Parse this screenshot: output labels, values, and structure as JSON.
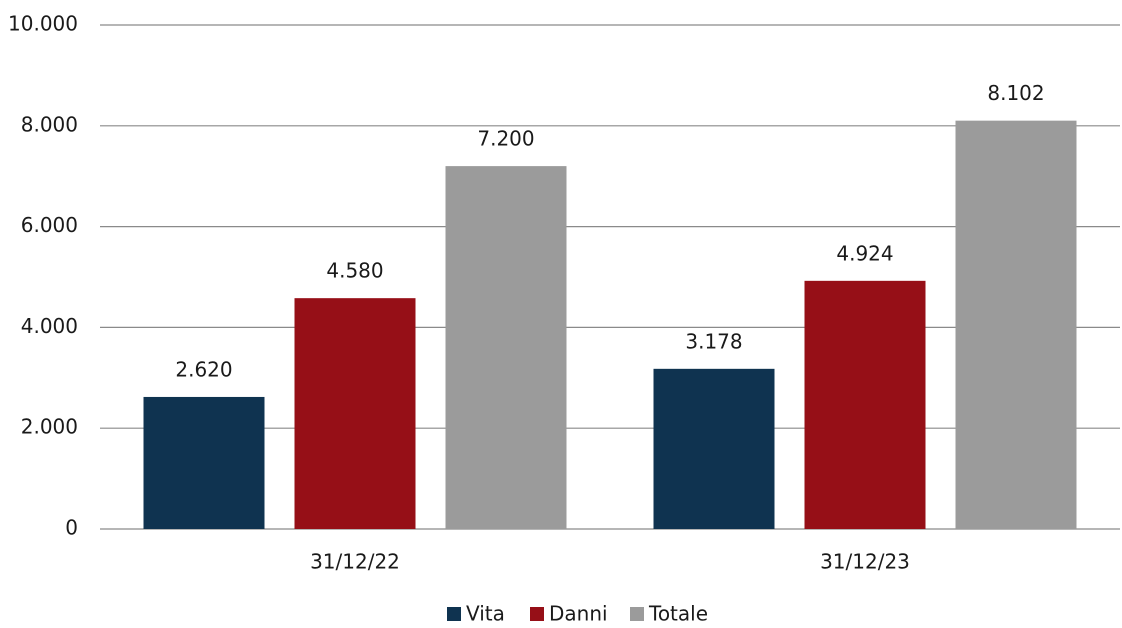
{
  "chart_data": {
    "type": "bar",
    "categories": [
      "31/12/22",
      "31/12/23"
    ],
    "series": [
      {
        "name": "Vita",
        "color": "#0f3350",
        "values": [
          2620,
          3178
        ],
        "value_labels": [
          "2.620",
          "3.178"
        ]
      },
      {
        "name": "Danni",
        "color": "#960f17",
        "values": [
          4580,
          4924
        ],
        "value_labels": [
          "4.580",
          "4.924"
        ]
      },
      {
        "name": "Totale",
        "color": "#9b9b9b",
        "values": [
          7200,
          8102
        ],
        "value_labels": [
          "7.200",
          "8.102"
        ]
      }
    ],
    "ylim": [
      0,
      10000
    ],
    "yticks": [
      0,
      {
        "value": 2000,
        "label": "2.000"
      },
      {
        "value": 4000,
        "label": "4.000"
      },
      {
        "value": 6000,
        "label": "6.000"
      },
      {
        "value": 8000,
        "label": "8.000"
      },
      {
        "value": 10000,
        "label": "10.000"
      }
    ],
    "grid": true,
    "legend": "bottom"
  }
}
